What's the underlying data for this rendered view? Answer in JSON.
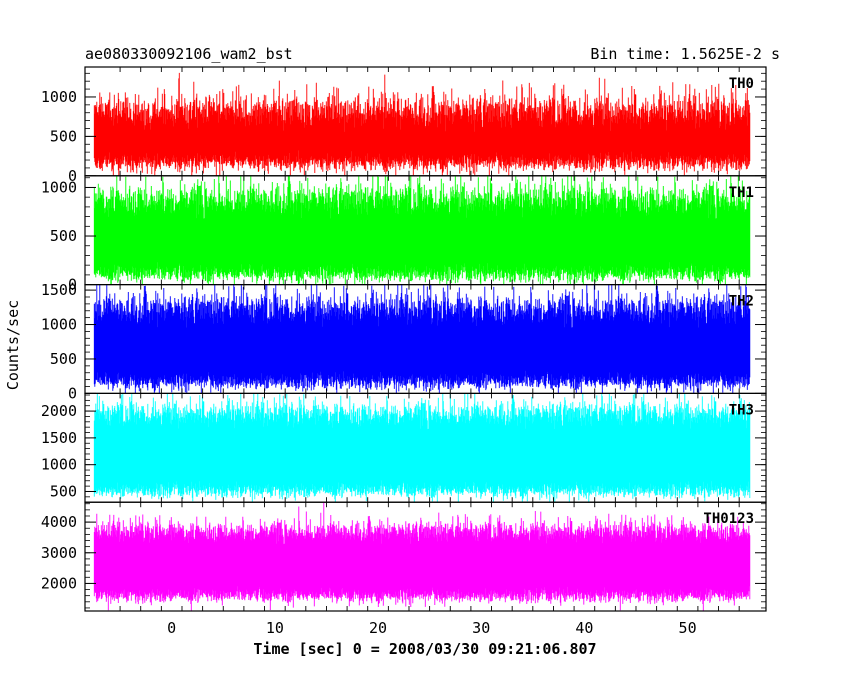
{
  "chart_data": {
    "type": "line",
    "title_left": "ae080330092106_wam2_bst",
    "title_right": "Bin time: 1.5625E-2 s",
    "xlabel": "Time [sec] 0 = 2008/03/30 09:21:06.807",
    "ylabel": "Counts/sec",
    "xlim": [
      -8.4,
      57.6
    ],
    "x_range": [
      -7.5,
      56.0
    ],
    "xticks": [
      0,
      10,
      20,
      30,
      40,
      50
    ],
    "xtick_labels": [
      "0",
      "10",
      "20",
      "30",
      "40",
      "50"
    ],
    "grid": false,
    "panels": [
      {
        "name": "TH0",
        "color": "#ff0000",
        "ylim": [
          0,
          1380
        ],
        "yticks": [
          0,
          500,
          1000
        ],
        "ytick_labels": [
          "0",
          "500",
          "1000"
        ],
        "signal": {
          "lo_mean": 170,
          "lo_spread": 110,
          "hi_mean": 820,
          "hi_spread": 210
        }
      },
      {
        "name": "TH1",
        "color": "#00ff00",
        "ylim": [
          0,
          1120
        ],
        "yticks": [
          0,
          500,
          1000
        ],
        "ytick_labels": [
          "0",
          "500",
          "1000"
        ],
        "signal": {
          "lo_mean": 110,
          "lo_spread": 90,
          "hi_mean": 880,
          "hi_spread": 160
        }
      },
      {
        "name": "TH2",
        "color": "#0000ff",
        "ylim": [
          0,
          1580
        ],
        "yticks": [
          0,
          500,
          1000,
          1500
        ],
        "ytick_labels": [
          "0",
          "500",
          "1000",
          "1500"
        ],
        "signal": {
          "lo_mean": 170,
          "lo_spread": 120,
          "hi_mean": 1230,
          "hi_spread": 220
        }
      },
      {
        "name": "TH3",
        "color": "#00ffff",
        "ylim": [
          300,
          2330
        ],
        "yticks": [
          500,
          1000,
          1500,
          2000
        ],
        "ytick_labels": [
          "500",
          "1000",
          "1500",
          "2000"
        ],
        "signal": {
          "lo_mean": 520,
          "lo_spread": 140,
          "hi_mean": 1950,
          "hi_spread": 230
        }
      },
      {
        "name": "TH0123",
        "color": "#ff00ff",
        "ylim": [
          1100,
          4650
        ],
        "yticks": [
          2000,
          3000,
          4000
        ],
        "ytick_labels": [
          "2000",
          "3000",
          "4000"
        ],
        "signal": {
          "lo_mean": 1600,
          "lo_spread": 230,
          "hi_mean": 3700,
          "hi_spread": 330
        }
      }
    ]
  }
}
